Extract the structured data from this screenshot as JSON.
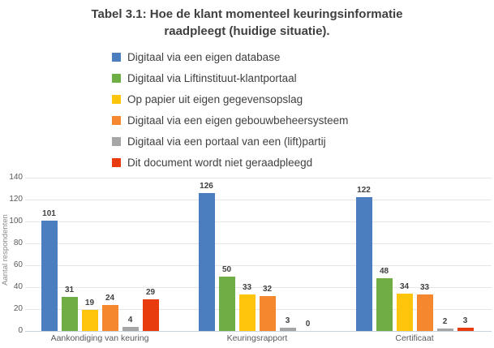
{
  "title_lines": {
    "line1": "Tabel 3.1: Hoe de klant momenteel keuringsinformatie",
    "line2": "raadpleegt (huidige situatie)."
  },
  "chart_data": {
    "type": "bar",
    "title": "Tabel 3.1: Hoe de klant momenteel keuringsinformatie raadpleegt (huidige situatie).",
    "categories": [
      "Aankondiging van keuring",
      "Keuringsrapport",
      "Certificaat"
    ],
    "series": [
      {
        "name": "Digitaal via een eigen database",
        "color": "#4a7ebe",
        "values": [
          101,
          126,
          122
        ]
      },
      {
        "name": "Digitaal via Liftinstituut-klantportaal",
        "color": "#6fae44",
        "values": [
          31,
          50,
          48
        ]
      },
      {
        "name": "Op papier uit eigen gegevensopslag",
        "color": "#fec50c",
        "values": [
          19,
          33,
          34
        ]
      },
      {
        "name": "Digitaal via een eigen gebouwbeheersysteem",
        "color": "#f5872e",
        "values": [
          24,
          32,
          33
        ]
      },
      {
        "name": "Digitaal via een portaal van een (lift)partij",
        "color": "#a6a6a6",
        "values": [
          4,
          3,
          2
        ]
      },
      {
        "name": "Dit document wordt niet geraadpleegd",
        "color": "#e83c0e",
        "values": [
          29,
          0,
          3
        ]
      }
    ],
    "xlabel": "",
    "ylabel": "Aantal respondenten",
    "ylim": [
      0,
      140
    ],
    "yticks": [
      0,
      20,
      40,
      60,
      80,
      100,
      120,
      140
    ],
    "grid": true,
    "data_labels": true,
    "legend_position": "top-left-stacked"
  },
  "colors": {
    "title_text": "#3f3f3f",
    "legend_text": "#404040",
    "axis_text": "#595959",
    "gridline": "#e6e6e6",
    "axis_line": "#c9d2e0"
  }
}
